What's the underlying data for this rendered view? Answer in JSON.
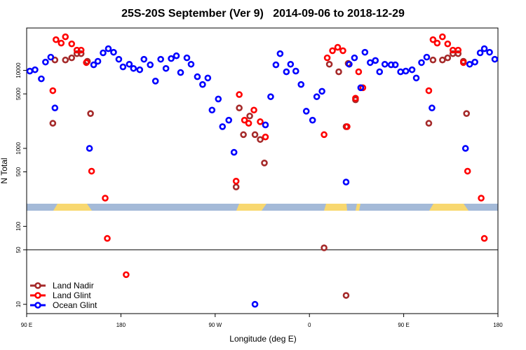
{
  "chart_data": {
    "type": "scatter",
    "title": "25S-20S September (Ver 9)   2014-09-06 to 2018-12-29",
    "x_label": "Longitude (deg E)",
    "y_label": "N Total",
    "log_y": true,
    "reference_line": 50,
    "legend": "bottom-left",
    "xlim": [
      90,
      540
    ],
    "ylim": [
      7.6,
      35000
    ],
    "xticks": [
      {
        "value": 90,
        "label": "90 E"
      },
      180,
      {
        "value": 270,
        "label": "90 W"
      },
      {
        "value": 360,
        "label": "0"
      },
      {
        "value": 450,
        "label": "90 E"
      },
      {
        "value": 540,
        "label": "180"
      }
    ],
    "yticks": [
      10,
      50,
      100,
      500,
      1000,
      5000,
      10000
    ],
    "series": [
      {
        "name": "Land Nadir",
        "color": "#a52a2a",
        "x": [
          115,
          117,
          127,
          133,
          138,
          142,
          148,
          151,
          290,
          293,
          297,
          303,
          308,
          313,
          317,
          374,
          379,
          388,
          395,
          397,
          404,
          474,
          478,
          487,
          492,
          497,
          502,
          507,
          510,
          395
        ],
        "values": [
          2100,
          13600,
          13600,
          14500,
          16400,
          16400,
          13100,
          2800,
          320,
          3300,
          1500,
          2600,
          1500,
          1300,
          650,
          53,
          12000,
          9600,
          1900,
          12300,
          4200,
          2100,
          13600,
          13600,
          14500,
          16400,
          16400,
          13100,
          2800,
          13
        ]
      },
      {
        "name": "Land Glint",
        "color": "#ff0000",
        "x": [
          115,
          118,
          123,
          127,
          133,
          138,
          142,
          147,
          152,
          165,
          167,
          185,
          290,
          293,
          298,
          302,
          307,
          313,
          318,
          374,
          377,
          382,
          387,
          392,
          396,
          404,
          407,
          411,
          474,
          478,
          482,
          487,
          492,
          497,
          502,
          507,
          511,
          524,
          527
        ],
        "values": [
          5500,
          24800,
          22400,
          27000,
          21900,
          18200,
          18200,
          12600,
          510,
          230,
          70,
          24,
          380,
          4900,
          2300,
          2100,
          3100,
          2200,
          1400,
          1500,
          14500,
          17900,
          19800,
          17900,
          1900,
          4400,
          9600,
          6000,
          5500,
          24800,
          22400,
          27000,
          21900,
          18200,
          18200,
          12600,
          510,
          230,
          70
        ]
      },
      {
        "name": "Ocean Glint",
        "color": "#0000ff",
        "x": [
          93,
          98,
          104,
          108,
          113,
          117,
          150,
          154,
          158,
          163,
          168,
          173,
          178,
          182,
          188,
          192,
          198,
          202,
          208,
          213,
          218,
          223,
          228,
          233,
          237,
          243,
          247,
          253,
          258,
          263,
          267,
          273,
          277,
          283,
          288,
          318,
          323,
          328,
          332,
          338,
          342,
          347,
          352,
          357,
          363,
          367,
          372,
          395,
          398,
          403,
          409,
          413,
          418,
          423,
          427,
          432,
          438,
          442,
          447,
          452,
          458,
          462,
          467,
          472,
          477,
          509,
          513,
          518,
          523,
          527,
          532,
          537,
          308
        ],
        "values": [
          9800,
          10200,
          7800,
          12800,
          14800,
          3300,
          1000,
          11800,
          13100,
          16800,
          19000,
          17100,
          13900,
          11100,
          12000,
          10600,
          10200,
          13900,
          11800,
          7300,
          13900,
          10600,
          14200,
          15400,
          9400,
          14500,
          12000,
          8300,
          6600,
          8000,
          3100,
          4300,
          1900,
          2300,
          890,
          2000,
          4600,
          11800,
          16400,
          9600,
          12000,
          9800,
          6600,
          3000,
          2300,
          4600,
          5400,
          370,
          12000,
          14500,
          6000,
          17100,
          12600,
          13400,
          9600,
          12000,
          11800,
          11800,
          9600,
          9800,
          10200,
          8000,
          12600,
          14800,
          3300,
          1000,
          12000,
          12800,
          16800,
          19000,
          17100,
          13900,
          10
        ]
      }
    ]
  }
}
